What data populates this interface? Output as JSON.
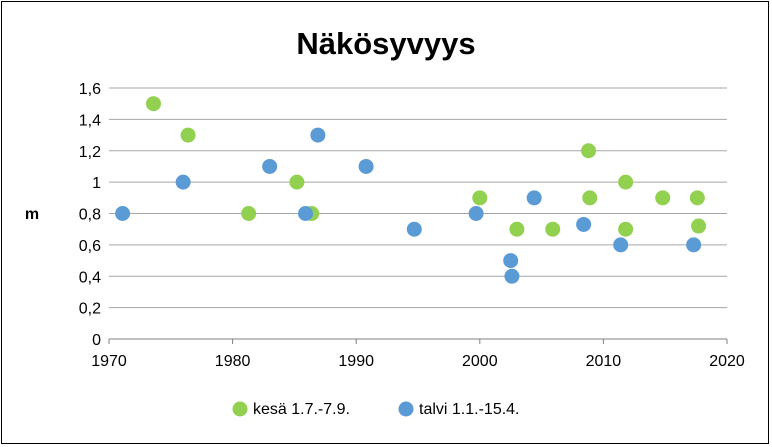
{
  "chart_data": {
    "type": "scatter",
    "title": "Näkösyvyys",
    "xlabel": "",
    "ylabel": "m",
    "xlim": [
      1970,
      2020
    ],
    "ylim": [
      0,
      1.6
    ],
    "x_ticks": [
      {
        "value": 1970,
        "label": "1970"
      },
      {
        "value": 1980,
        "label": "1980"
      },
      {
        "value": 1990,
        "label": "1990"
      },
      {
        "value": 2000,
        "label": "2000"
      },
      {
        "value": 2010,
        "label": "2010"
      },
      {
        "value": 2020,
        "label": "2020"
      }
    ],
    "y_ticks": [
      {
        "value": 0,
        "label": "0"
      },
      {
        "value": 0.2,
        "label": "0,2"
      },
      {
        "value": 0.4,
        "label": "0,4"
      },
      {
        "value": 0.6,
        "label": "0,6"
      },
      {
        "value": 0.8,
        "label": "0,8"
      },
      {
        "value": 1.0,
        "label": "1"
      },
      {
        "value": 1.2,
        "label": "1,2"
      },
      {
        "value": 1.4,
        "label": "1,4"
      },
      {
        "value": 1.6,
        "label": "1,6"
      }
    ],
    "grid": "horizontal",
    "legend_position": "bottom",
    "series": [
      {
        "name": "kesä 1.7.-7.9.",
        "color": "#92d050",
        "points": [
          {
            "x": 1973.6,
            "y": 1.5
          },
          {
            "x": 1976.4,
            "y": 1.3
          },
          {
            "x": 1981.3,
            "y": 0.8
          },
          {
            "x": 1985.2,
            "y": 1.0
          },
          {
            "x": 1986.4,
            "y": 0.8
          },
          {
            "x": 2000.0,
            "y": 0.9
          },
          {
            "x": 2003.0,
            "y": 0.7
          },
          {
            "x": 2005.9,
            "y": 0.7
          },
          {
            "x": 2008.8,
            "y": 1.2
          },
          {
            "x": 2008.9,
            "y": 0.9
          },
          {
            "x": 2011.8,
            "y": 1.0
          },
          {
            "x": 2011.8,
            "y": 0.7
          },
          {
            "x": 2014.8,
            "y": 0.9
          },
          {
            "x": 2017.6,
            "y": 0.9
          },
          {
            "x": 2017.7,
            "y": 0.72
          }
        ]
      },
      {
        "name": "talvi 1.1.-15.4.",
        "color": "#5b9bd5",
        "points": [
          {
            "x": 1971.1,
            "y": 0.8
          },
          {
            "x": 1976.0,
            "y": 1.0
          },
          {
            "x": 1983.0,
            "y": 1.1
          },
          {
            "x": 1985.9,
            "y": 0.8
          },
          {
            "x": 1986.9,
            "y": 1.3
          },
          {
            "x": 1990.8,
            "y": 1.1
          },
          {
            "x": 1994.7,
            "y": 0.7
          },
          {
            "x": 1999.7,
            "y": 0.8
          },
          {
            "x": 2002.5,
            "y": 0.5
          },
          {
            "x": 2002.6,
            "y": 0.4
          },
          {
            "x": 2004.4,
            "y": 0.9
          },
          {
            "x": 2008.4,
            "y": 0.73
          },
          {
            "x": 2011.4,
            "y": 0.6
          },
          {
            "x": 2017.3,
            "y": 0.6
          }
        ]
      }
    ]
  }
}
